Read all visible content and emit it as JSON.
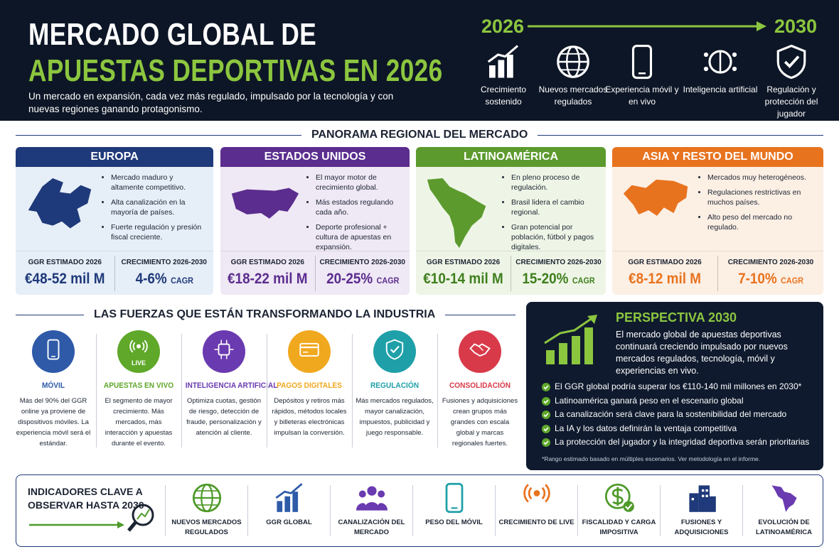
{
  "header": {
    "title_line1": "MERCADO GLOBAL DE",
    "title_line2": "APUESTAS DEPORTIVAS EN 2026",
    "subtitle": "Un mercado en expansión, cada vez más regulado, impulsado por la tecnología y con nuevas regiones ganando protagonismo.",
    "timeline": {
      "start": "2026",
      "end": "2030"
    },
    "trends": [
      "Crecimiento sostenido",
      "Nuevos mercados regulados",
      "Experiencia móvil y en vivo",
      "Inteligencia artificial",
      "Regulación y protección del jugador"
    ]
  },
  "regions": {
    "title": "PANORAMA REGIONAL DEL MERCADO",
    "items": [
      {
        "name": "EUROPA",
        "bullets": [
          "Mercado maduro y altamente competitivo.",
          "Alta canalización en la mayoría de países.",
          "Fuerte regulación y presión fiscal creciente."
        ],
        "ggr_label": "GGR ESTIMADO 2026",
        "ggr_value": "€48-52 mil M",
        "growth_label": "CRECIMIENTO 2026-2030",
        "growth_value": "4-6%",
        "growth_unit": "CAGR"
      },
      {
        "name": "ESTADOS UNIDOS",
        "bullets": [
          "El mayor motor de crecimiento global.",
          "Más estados regulando cada año.",
          "Deporte profesional + cultura de apuestas en expansión."
        ],
        "ggr_label": "GGR ESTIMADO 2026",
        "ggr_value": "€18-22 mil M",
        "growth_label": "CRECIMIENTO 2026-2030",
        "growth_value": "20-25%",
        "growth_unit": "CAGR"
      },
      {
        "name": "LATINOAMÉRICA",
        "bullets": [
          "En pleno proceso de regulación.",
          "Brasil lidera el cambio regional.",
          "Gran potencial por población, fútbol y pagos digitales."
        ],
        "ggr_label": "GGR ESTIMADO 2026",
        "ggr_value": "€10-14 mil M",
        "growth_label": "CRECIMIENTO 2026-2030",
        "growth_value": "15-20%",
        "growth_unit": "CAGR"
      },
      {
        "name": "ASIA Y RESTO DEL MUNDO",
        "bullets": [
          "Mercados muy heterogéneos.",
          "Regulaciones restrictivas en muchos países.",
          "Alto peso del mercado no regulado."
        ],
        "ggr_label": "GGR ESTIMADO 2026",
        "ggr_value": "€8-12 mil M",
        "growth_label": "CRECIMIENTO 2026-2030",
        "growth_value": "7-10%",
        "growth_unit": "CAGR"
      }
    ]
  },
  "forces": {
    "title": "LAS FUERZAS QUE ESTÁN TRANSFORMANDO LA INDUSTRIA",
    "items": [
      {
        "title": "MÓVIL",
        "text": "Más del 90% del GGR online ya proviene de dispositivos móviles. La experiencia móvil será el estándar."
      },
      {
        "title": "APUESTAS EN VIVO",
        "badge": "LIVE",
        "text": "El segmento de mayor crecimiento. Más mercados, más interacción y apuestas durante el evento."
      },
      {
        "title": "INTELIGENCIA ARTIFICIAL",
        "text": "Optimiza cuotas, gestión de riesgo, detección de fraude, personalización y atención al cliente."
      },
      {
        "title": "PAGOS DIGITALES",
        "text": "Depósitos y retiros más rápidos, métodos locales y billeteras electrónicas impulsan la conversión."
      },
      {
        "title": "REGULACIÓN",
        "text": "Más mercados regulados, mayor canalización, impuestos, publicidad y juego responsable."
      },
      {
        "title": "CONSOLIDACIÓN",
        "text": "Fusiones y adquisiciones crean grupos más grandes con escala global y marcas regionales fuertes."
      }
    ]
  },
  "perspective": {
    "title": "PERSPECTIVA 2030",
    "lead": "El mercado global de apuestas deportivas continuará creciendo impulsado por nuevos mercados regulados, tecnología, móvil y experiencias en vivo.",
    "bullets": [
      "El GGR global podría superar los €110-140 mil millones en 2030*",
      "Latinoamérica ganará peso en el escenario global",
      "La canalización será clave para la sostenibilidad del mercado",
      "La IA y los datos definirán la ventaja competitiva",
      "La protección del jugador y la integridad deportiva serán prioritarias"
    ],
    "note": "*Rango estimado basado en múltiples escenarios. Ver metodología en el informe."
  },
  "indicators": {
    "title": "INDICADORES CLAVE A OBSERVAR HASTA 2030",
    "items": [
      "NUEVOS MERCADOS REGULADOS",
      "GGR GLOBAL",
      "CANALIZACIÓN DEL MERCADO",
      "PESO DEL MÓVIL",
      "CRECIMIENTO DE LIVE",
      "FISCALIDAD Y CARGA IMPOSITIVA",
      "FUSIONES Y ADQUISICIONES",
      "EVOLUCIÓN DE LATINOAMÉRICA"
    ]
  }
}
